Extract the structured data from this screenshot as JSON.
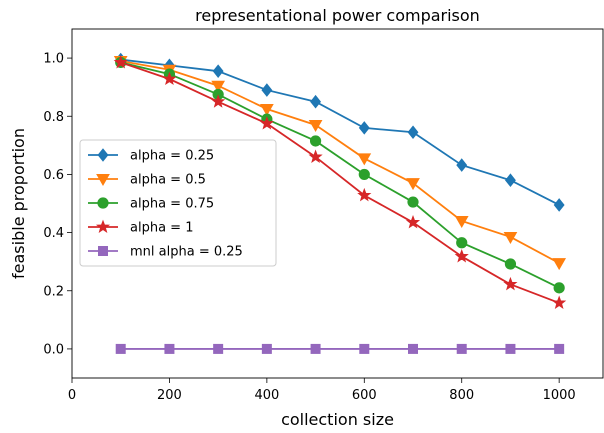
{
  "chart_data": {
    "type": "line",
    "title": "representational power comparison",
    "xlabel": "collection size",
    "ylabel": "feasible proportion",
    "xlim": [
      0,
      1090
    ],
    "ylim": [
      -0.1,
      1.1
    ],
    "xticks": [
      0,
      200,
      400,
      600,
      800,
      1000
    ],
    "yticks": [
      0.0,
      0.2,
      0.4,
      0.6,
      0.8,
      1.0
    ],
    "ytick_labels": [
      "0.0",
      "0.2",
      "0.4",
      "0.6",
      "0.8",
      "1.0"
    ],
    "grid": false,
    "legend_position": "center-left",
    "x": [
      100,
      200,
      300,
      400,
      500,
      600,
      700,
      800,
      900,
      1000
    ],
    "series": [
      {
        "name": "alpha = 0.25",
        "color": "#1f77b4",
        "marker": "diamond",
        "values": [
          0.995,
          0.975,
          0.955,
          0.89,
          0.85,
          0.76,
          0.745,
          0.632,
          0.58,
          0.495
        ]
      },
      {
        "name": "alpha = 0.5",
        "color": "#ff7f0e",
        "marker": "triangle-down",
        "values": [
          0.99,
          0.96,
          0.905,
          0.825,
          0.77,
          0.655,
          0.57,
          0.44,
          0.385,
          0.295
        ]
      },
      {
        "name": "alpha = 0.75",
        "color": "#2ca02c",
        "marker": "circle",
        "values": [
          0.985,
          0.945,
          0.875,
          0.79,
          0.715,
          0.6,
          0.505,
          0.365,
          0.292,
          0.21
        ]
      },
      {
        "name": "alpha = 1",
        "color": "#d62728",
        "marker": "star",
        "values": [
          0.985,
          0.928,
          0.85,
          0.775,
          0.66,
          0.528,
          0.435,
          0.318,
          0.222,
          0.158
        ]
      },
      {
        "name": "mnl alpha = 0.25",
        "color": "#9467bd",
        "marker": "square",
        "values": [
          0,
          0,
          0,
          0,
          0,
          0,
          0,
          0,
          0,
          0
        ]
      }
    ]
  }
}
